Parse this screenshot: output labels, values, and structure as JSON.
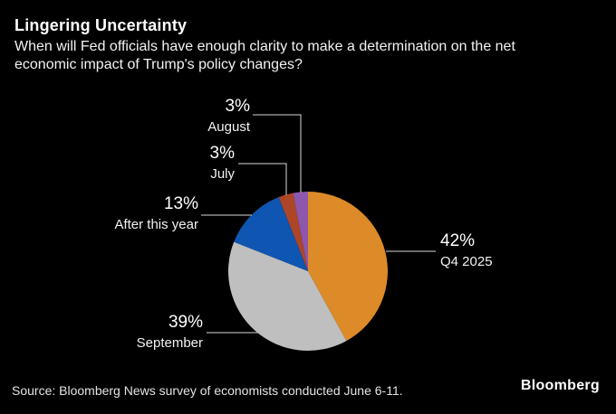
{
  "chart_data": {
    "type": "pie",
    "title": "Lingering Uncertainty",
    "subtitle": "When will Fed officials have enough clarity to make a determination on the net economic impact of Trump's policy changes?",
    "start_angle_deg": 0,
    "direction": "clockwise",
    "legend_position": "callout-labels",
    "slices": [
      {
        "label": "Q4 2025",
        "pct_label": "42%",
        "value": 42,
        "color": "#DD8A28"
      },
      {
        "label": "September",
        "pct_label": "39%",
        "value": 39,
        "color": "#BFBFBF"
      },
      {
        "label": "After this year",
        "pct_label": "13%",
        "value": 13,
        "color": "#0F55B2"
      },
      {
        "label": "July",
        "pct_label": "3%",
        "value": 3,
        "color": "#AD4527"
      },
      {
        "label": "August",
        "pct_label": "3%",
        "value": 3,
        "color": "#8D57AC"
      }
    ]
  },
  "footer": {
    "source": "Source: Bloomberg News survey of economists conducted June 6-11.",
    "brand": "Bloomberg"
  },
  "colors": {
    "background": "#000000",
    "title_text": "#FFFFFF",
    "subtitle_text": "#F2F2F2",
    "source_text": "#E3E3E3",
    "leader_line": "#D9D9D9"
  }
}
